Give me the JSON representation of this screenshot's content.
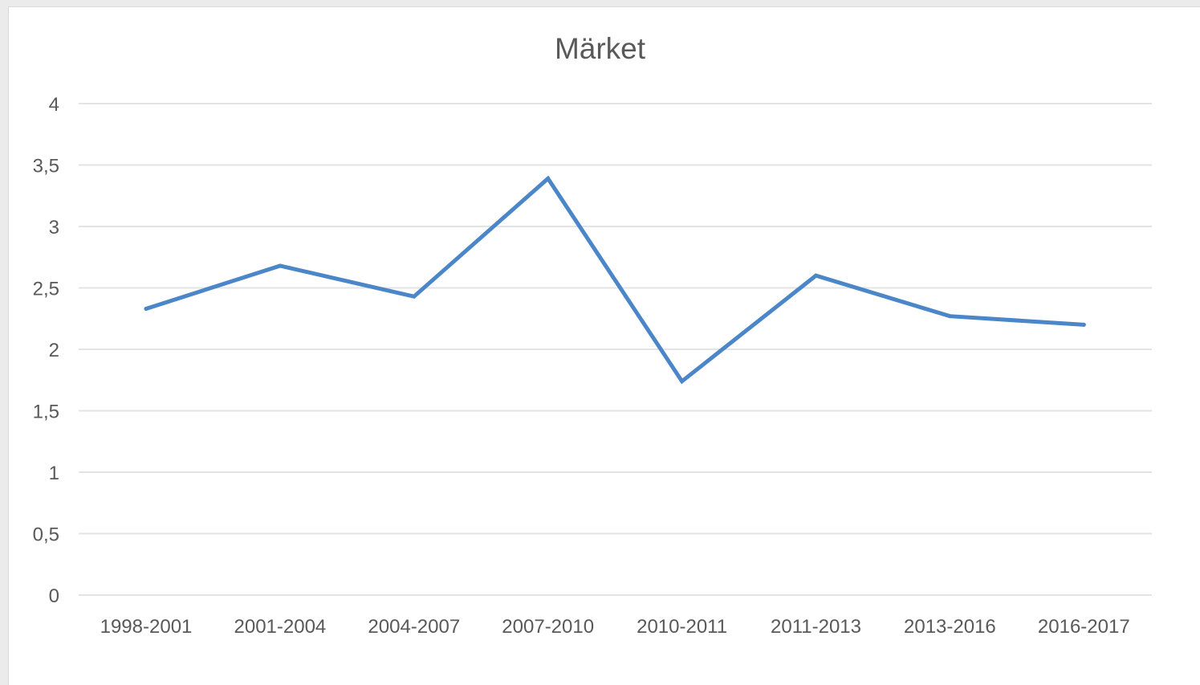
{
  "chart_data": {
    "type": "line",
    "title": "Märket",
    "xlabel": "",
    "ylabel": "",
    "categories": [
      "1998-2001",
      "2001-2004",
      "2004-2007",
      "2007-2010",
      "2010-2011",
      "2011-2013",
      "2013-2016",
      "2016-2017"
    ],
    "series": [
      {
        "values": [
          2.33,
          2.68,
          2.43,
          3.39,
          1.74,
          2.6,
          2.27,
          2.2
        ]
      }
    ],
    "ylim": [
      0,
      4
    ],
    "yticks": [
      "0",
      "0,5",
      "1",
      "1,5",
      "2",
      "2,5",
      "3",
      "3,5",
      "4"
    ],
    "grid": true,
    "legend": "none"
  },
  "colors": {
    "line": "#4a86c8",
    "grid": "#e3e3e3",
    "text": "#595959"
  }
}
